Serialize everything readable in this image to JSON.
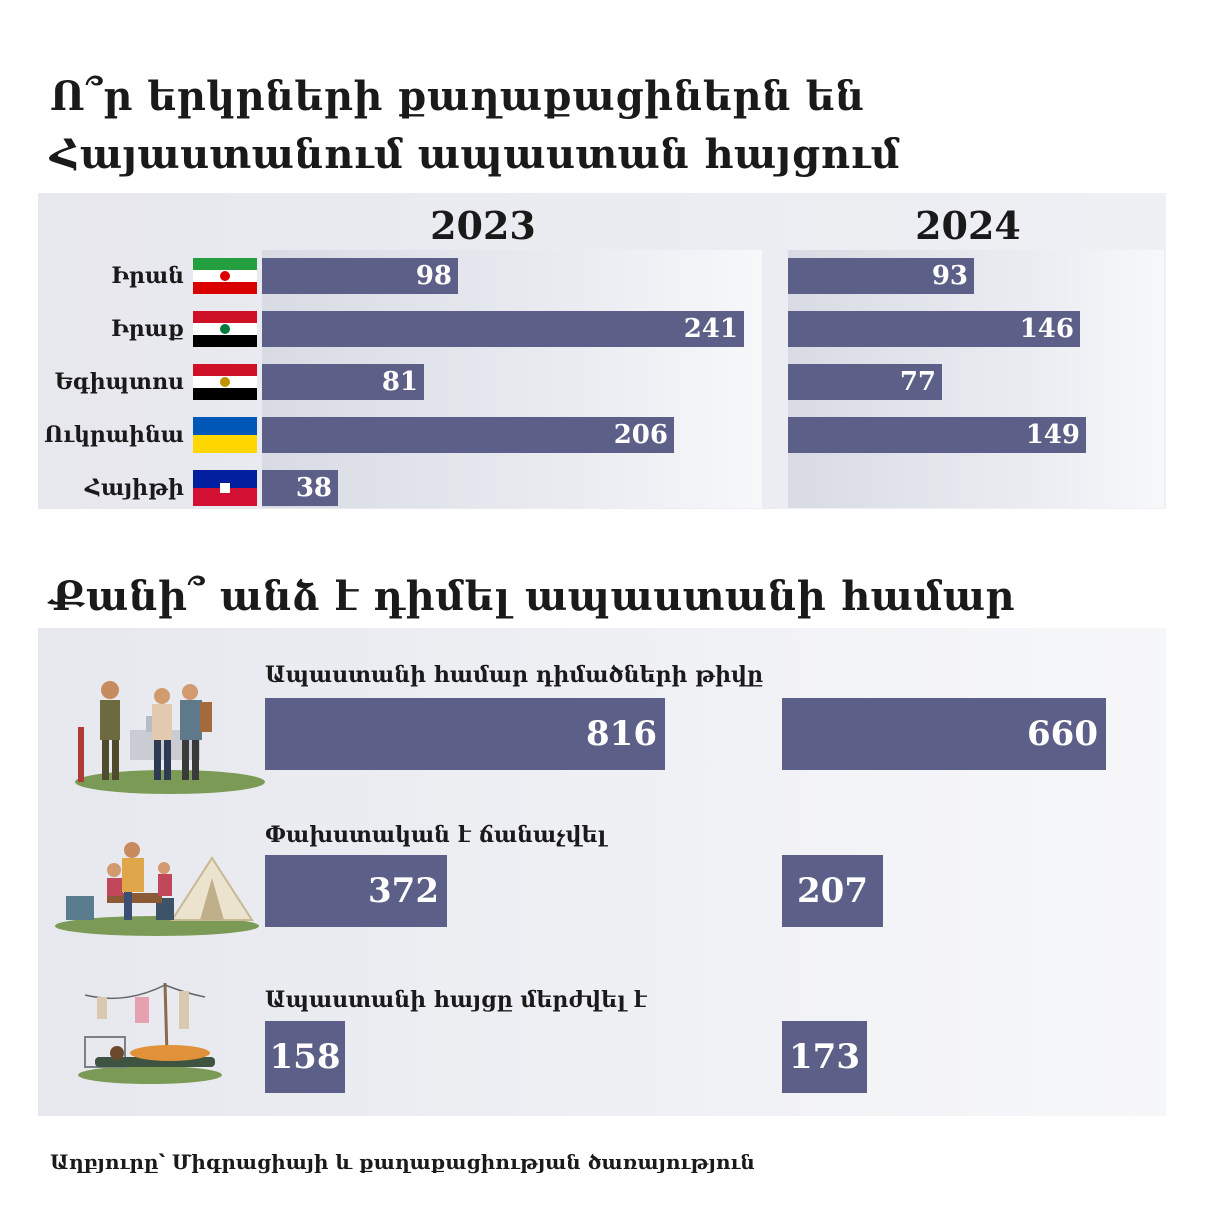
{
  "title_1": "Ո՞ր երկրների քաղաքացիներն են Հայաստանում ապաստան հայցում",
  "title_2": "Քանի՞ անձ է դիմել ապաստանի համար",
  "source": "Աղբյուրը՝ Միգրացիայի և քաղաքացիության ծառայություն",
  "colors": {
    "bar": "#5c5f87",
    "panel": "#eceef3"
  },
  "chart_data": [
    {
      "type": "bar",
      "orientation": "horizontal",
      "categories": [
        "Իրան",
        "Իրաք",
        "Եգիպտոս",
        "Ուկրաինա",
        "Հայիթի"
      ],
      "flags": [
        "iran-flag",
        "iraq-flag",
        "egypt-flag",
        "ukraine-flag",
        "haiti-flag"
      ],
      "series": [
        {
          "name": "2023",
          "values": [
            98,
            241,
            81,
            206,
            38
          ]
        },
        {
          "name": "2024",
          "values": [
            93,
            146,
            77,
            149,
            null
          ]
        }
      ],
      "data_labels": true
    },
    {
      "type": "bar",
      "orientation": "horizontal",
      "categories": [
        "Ապաստանի համար դիմածների թիվը",
        "Փախստական է ճանաչվել",
        "Ապաստանի հայցը մերժվել է"
      ],
      "icons": [
        "asylum-applicants-illustration",
        "refugee-family-illustration",
        "rejected-camp-illustration"
      ],
      "series": [
        {
          "name": "2023",
          "values": [
            816,
            372,
            158
          ]
        },
        {
          "name": "2024",
          "values": [
            660,
            207,
            173
          ]
        }
      ],
      "data_labels": true
    }
  ]
}
